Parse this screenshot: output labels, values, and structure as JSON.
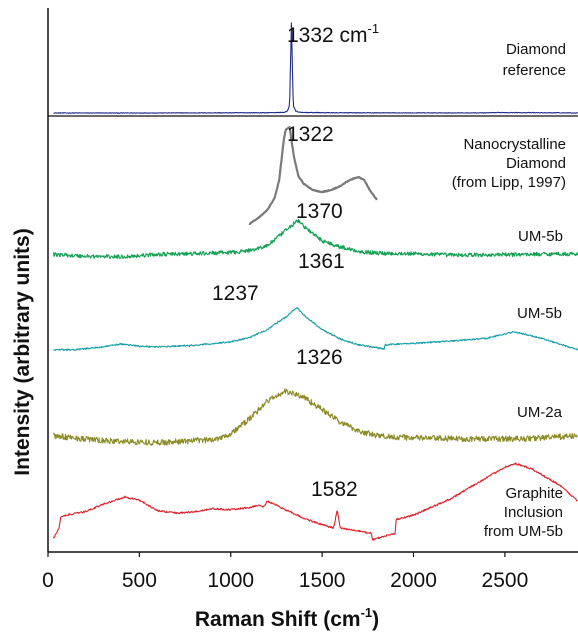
{
  "chart_data": {
    "type": "line",
    "xlabel": "Raman Shift (cm",
    "xlabel_sup": "-1",
    "xlabel_end": ")",
    "ylabel": "Intensity (arbitrary units)",
    "xlim": [
      0,
      2900
    ],
    "xticks": [
      0,
      500,
      1000,
      1500,
      2000,
      2500
    ],
    "grid": false,
    "series": [
      {
        "name": "Diamond reference",
        "label_lines": [
          "Diamond",
          "reference"
        ],
        "color": "#1f2a8a",
        "noise": 0.3,
        "x": [
          30,
          400,
          800,
          1200,
          1290,
          1310,
          1322,
          1332,
          1342,
          1355,
          1380,
          1600,
          2000,
          2400,
          2470,
          2900
        ],
        "y": [
          0.0,
          0.0,
          0.1,
          0.3,
          0.6,
          2,
          8,
          95,
          8,
          2,
          0.6,
          0.2,
          0.1,
          0.1,
          0.5,
          0.1
        ]
      },
      {
        "name": "Nanocrystalline Diamond (from Lipp, 1997)",
        "label_lines": [
          "Nanocrystalline",
          "Diamond",
          "(from Lipp, 1997)"
        ],
        "color": "#7a7a7a",
        "noise": 0.4,
        "x": [
          1100,
          1150,
          1200,
          1240,
          1265,
          1280,
          1290,
          1300,
          1322,
          1345,
          1370,
          1400,
          1450,
          1500,
          1550,
          1600,
          1650,
          1700,
          1730,
          1760,
          1800
        ],
        "y": [
          0,
          6,
          14,
          26,
          44,
          68,
          84,
          94,
          97,
          68,
          48,
          40,
          34,
          32,
          34,
          38,
          44,
          47,
          44,
          34,
          24
        ]
      },
      {
        "name": "UM-5b",
        "label_lines": [
          "UM-5b"
        ],
        "color": "#12a052",
        "noise": 3.2,
        "x": [
          30,
          200,
          400,
          500,
          600,
          800,
          1000,
          1100,
          1200,
          1300,
          1350,
          1370,
          1420,
          1500,
          1600,
          1700,
          1800,
          2000,
          2200,
          2400,
          2600,
          2800,
          2900
        ],
        "y": [
          22,
          19,
          18,
          20,
          22,
          23,
          25,
          28,
          36,
          60,
          73,
          76,
          62,
          44,
          34,
          27,
          24,
          23,
          21,
          21,
          22,
          23,
          22
        ]
      },
      {
        "name": "UM-5b",
        "label_lines": [
          "UM-5b"
        ],
        "color": "#18a0a8",
        "noise": 1.0,
        "x": [
          30,
          150,
          300,
          400,
          500,
          600,
          800,
          1000,
          1100,
          1200,
          1237,
          1300,
          1361,
          1400,
          1500,
          1600,
          1700,
          1840,
          1845,
          2000,
          2200,
          2400,
          2550,
          2700,
          2900
        ],
        "y": [
          17,
          17,
          21,
          25,
          22,
          21,
          23,
          28,
          34,
          45,
          52,
          62,
          76,
          65,
          45,
          32,
          24,
          18,
          24,
          26,
          29,
          33,
          42,
          33,
          17
        ]
      },
      {
        "name": "UM-2a",
        "label_lines": [
          "UM-2a"
        ],
        "color": "#8b8b26",
        "noise": 3.0,
        "x": [
          30,
          300,
          600,
          900,
          1000,
          1100,
          1200,
          1300,
          1400,
          1500,
          1600,
          1700,
          1800,
          2000,
          2200,
          2600,
          2900
        ],
        "y": [
          28,
          23,
          21,
          24,
          30,
          45,
          64,
          74,
          68,
          55,
          42,
          33,
          28,
          26,
          25,
          25,
          28
        ]
      },
      {
        "name": "Graphite Inclusion from UM-5b",
        "label_lines": [
          "Graphite",
          "Inclusion",
          "from UM-5b"
        ],
        "color": "#e0222a",
        "noise": 0.8,
        "x": [
          30,
          60,
          70,
          100,
          200,
          300,
          420,
          500,
          600,
          700,
          800,
          900,
          1000,
          1100,
          1150,
          1180,
          1200,
          1250,
          1300,
          1400,
          1500,
          1560,
          1570,
          1582,
          1594,
          1600,
          1700,
          1770,
          1775,
          1900,
          1905,
          2000,
          2200,
          2400,
          2500,
          2560,
          2650,
          2800,
          2900
        ],
        "y": [
          5,
          15,
          25,
          27,
          30,
          37,
          44,
          41,
          31,
          29,
          30,
          33,
          32,
          34,
          36,
          35,
          40,
          36,
          32,
          24,
          18,
          15,
          20,
          32,
          20,
          15,
          12,
          10,
          4,
          10,
          23,
          27,
          42,
          62,
          72,
          75,
          70,
          55,
          40
        ]
      }
    ],
    "annotations": [
      {
        "text": "1332 cm",
        "sup": "-1",
        "x": 1332
      },
      {
        "text": "1322",
        "x": 1322
      },
      {
        "text": "1370",
        "x": 1370
      },
      {
        "text": "1237",
        "x": 1237
      },
      {
        "text": "1361",
        "x": 1361
      },
      {
        "text": "1326",
        "x": 1326
      },
      {
        "text": "1582",
        "x": 1582
      }
    ]
  }
}
